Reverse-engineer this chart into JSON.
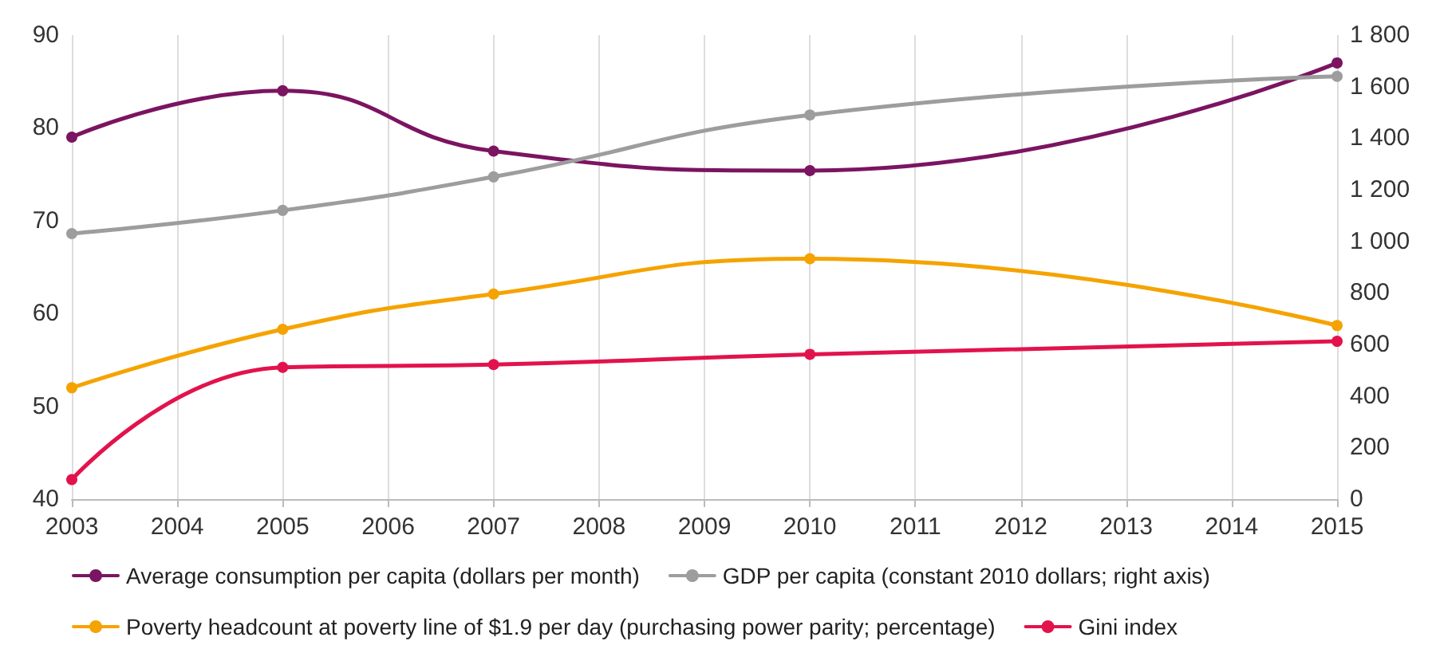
{
  "chart_data": {
    "type": "line",
    "x": [
      2003,
      2005,
      2007,
      2010,
      2015
    ],
    "series": [
      {
        "name": "Average consumption per capita (dollars per month)",
        "color": "#7b1461",
        "values": [
          79,
          84,
          77.5,
          75.4,
          87
        ]
      },
      {
        "name": "GDP per capita (constant 2010 dollars; right axis)",
        "color": "#9d9d9d",
        "values": [
          1030,
          1120,
          1250,
          1490,
          1640
        ],
        "axis": "y2"
      },
      {
        "name": "Poverty headcount at poverty line of $1.9 per day (purchasing power parity; percentage)",
        "color": "#f5a300",
        "values": [
          52,
          58.3,
          62.1,
          65.9,
          58.7
        ]
      },
      {
        "name": "Gini index",
        "color": "#e2134c",
        "values": [
          42.1,
          54.2,
          54.5,
          55.6,
          57
        ]
      }
    ],
    "xlim": [
      2003,
      2015
    ],
    "xticks": [
      2003,
      2004,
      2005,
      2006,
      2007,
      2008,
      2009,
      2010,
      2011,
      2012,
      2013,
      2014,
      2015
    ],
    "ylim": [
      40,
      90
    ],
    "yticks": [
      40,
      50,
      60,
      70,
      80,
      90
    ],
    "y2lim": [
      0,
      1800
    ],
    "y2ticks": [
      0,
      200,
      400,
      600,
      800,
      {
        "value": 1000,
        "label": "1 000"
      },
      {
        "value": 1200,
        "label": "1 200"
      },
      {
        "value": 1400,
        "label": "1 400"
      },
      {
        "value": 1600,
        "label": "1 600"
      },
      {
        "value": 1800,
        "label": "1 800"
      }
    ],
    "grid": "x",
    "legend": "bottom",
    "marker": "circle",
    "line_style": "solid"
  }
}
